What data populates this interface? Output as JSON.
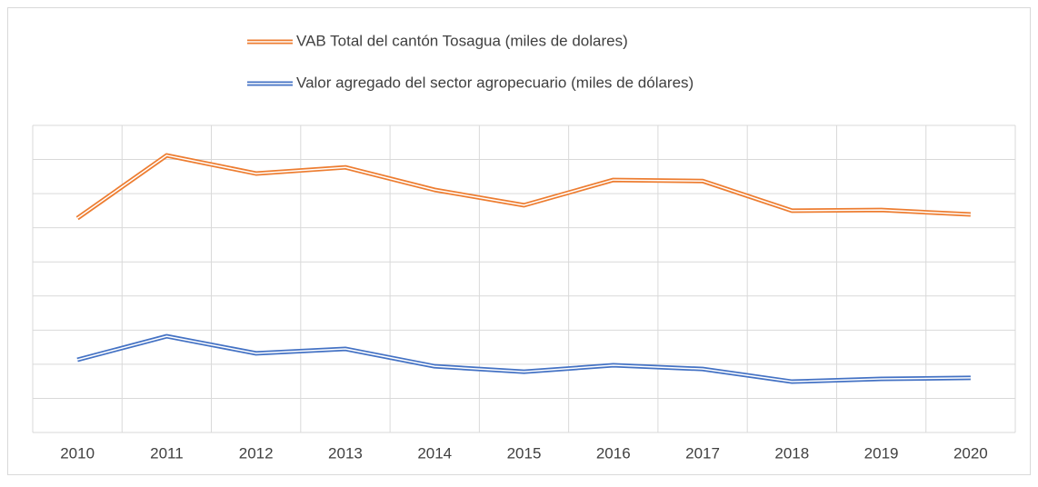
{
  "chart_data": {
    "type": "line",
    "categories": [
      "2010",
      "2011",
      "2012",
      "2013",
      "2014",
      "2015",
      "2016",
      "2017",
      "2018",
      "2019",
      "2020"
    ],
    "series": [
      {
        "name": "VAB Total del cantón Tosagua (miles de dolares)",
        "color": "#ED7D31",
        "values": [
          6.28,
          8.12,
          7.59,
          7.77,
          7.11,
          6.66,
          7.4,
          7.37,
          6.5,
          6.52,
          6.39
        ]
      },
      {
        "name": "Valor agregado del sector agropecuario (miles de dólares)",
        "color": "#4472C4",
        "values": [
          2.13,
          2.82,
          2.32,
          2.45,
          1.94,
          1.78,
          1.97,
          1.86,
          1.49,
          1.57,
          1.6
        ]
      }
    ],
    "ylim": [
      0,
      9
    ],
    "yticks": [
      0,
      1,
      2,
      3,
      4,
      5,
      6,
      7,
      8,
      9
    ],
    "grid": true,
    "legend": "top"
  }
}
